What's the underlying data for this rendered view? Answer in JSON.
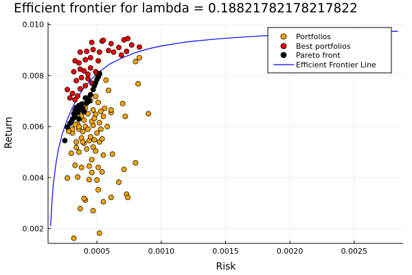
{
  "chart_data": {
    "type": "scatter",
    "title": "Efficient frontier for lambda = 0.18821782178217822",
    "xlabel": "Risk",
    "ylabel": "Return",
    "xlim": [
      0.00012,
      0.00288
    ],
    "ylim": [
      0.00142,
      0.0101
    ],
    "grid": true,
    "legend_position": "top-right",
    "x_ticks": [
      {
        "value": 0.0005,
        "label": "0.0005"
      },
      {
        "value": 0.001,
        "label": "0.0010"
      },
      {
        "value": 0.0015,
        "label": "0.0015"
      },
      {
        "value": 0.002,
        "label": "0.0020"
      },
      {
        "value": 0.0025,
        "label": "0.0025"
      }
    ],
    "y_ticks": [
      {
        "value": 0.002,
        "label": "0.002"
      },
      {
        "value": 0.004,
        "label": "0.004"
      },
      {
        "value": 0.006,
        "label": "0.006"
      },
      {
        "value": 0.008,
        "label": "0.008"
      },
      {
        "value": 0.01,
        "label": "0.010"
      }
    ],
    "series": [
      {
        "name": "Portfolios",
        "kind": "scatter",
        "color": "#f5a300",
        "points": [
          [
            0.00032,
            0.00162
          ],
          [
            0.00052,
            0.00182
          ],
          [
            0.00037,
            0.00278
          ],
          [
            0.00047,
            0.0027
          ],
          [
            0.00041,
            0.00312
          ],
          [
            0.00055,
            0.00305
          ],
          [
            0.00061,
            0.00322
          ],
          [
            0.00073,
            0.00335
          ],
          [
            0.00074,
            0.00322
          ],
          [
            0.0004,
            0.00318
          ],
          [
            0.00051,
            0.00352
          ],
          [
            0.00067,
            0.00382
          ],
          [
            0.00027,
            0.00398
          ],
          [
            0.00035,
            0.00402
          ],
          [
            0.00044,
            0.00392
          ],
          [
            0.0005,
            0.0039
          ],
          [
            0.00046,
            0.0042
          ],
          [
            0.00054,
            0.00422
          ],
          [
            0.00071,
            0.00432
          ],
          [
            0.0008,
            0.00458
          ],
          [
            0.00033,
            0.00448
          ],
          [
            0.00038,
            0.0044
          ],
          [
            0.00044,
            0.00445
          ],
          [
            0.00046,
            0.0047
          ],
          [
            0.00051,
            0.0044
          ],
          [
            0.00055,
            0.00488
          ],
          [
            0.00062,
            0.00492
          ],
          [
            0.0003,
            0.00495
          ],
          [
            0.00036,
            0.005
          ],
          [
            0.00042,
            0.00512
          ],
          [
            0.00047,
            0.0052
          ],
          [
            0.00049,
            0.00504
          ],
          [
            0.00034,
            0.00518
          ],
          [
            0.0004,
            0.00535
          ],
          [
            0.00044,
            0.00545
          ],
          [
            0.00052,
            0.0054
          ],
          [
            0.00038,
            0.00555
          ],
          [
            0.00045,
            0.0056
          ],
          [
            0.0005,
            0.00575
          ],
          [
            0.00031,
            0.00575
          ],
          [
            0.00036,
            0.0059
          ],
          [
            0.00041,
            0.006
          ],
          [
            0.00047,
            0.00605
          ],
          [
            0.00053,
            0.0059
          ],
          [
            0.00058,
            0.006
          ],
          [
            0.00035,
            0.0061
          ],
          [
            0.0004,
            0.00625
          ],
          [
            0.00046,
            0.0062
          ],
          [
            0.00052,
            0.00615
          ],
          [
            0.00033,
            0.00635
          ],
          [
            0.00038,
            0.0064
          ],
          [
            0.00043,
            0.0065
          ],
          [
            0.00049,
            0.00648
          ],
          [
            0.00055,
            0.0064
          ],
          [
            0.00061,
            0.00655
          ],
          [
            0.00036,
            0.00662
          ],
          [
            0.00041,
            0.00672
          ],
          [
            0.00047,
            0.00665
          ],
          [
            0.00053,
            0.0066
          ],
          [
            0.00072,
            0.0064
          ],
          [
            0.0004,
            0.0069
          ],
          [
            0.00045,
            0.00702
          ],
          [
            0.00051,
            0.00695
          ],
          [
            0.0007,
            0.0069
          ],
          [
            0.0009,
            0.0065
          ],
          [
            0.00061,
            0.00665
          ],
          [
            0.00044,
            0.0071
          ],
          [
            0.00049,
            0.00718
          ],
          [
            0.00059,
            0.00742
          ],
          [
            0.00082,
            0.00768
          ],
          [
            0.00052,
            0.00805
          ],
          [
            0.00057,
            0.00782
          ],
          [
            0.00036,
            0.006
          ],
          [
            0.00031,
            0.0059
          ],
          [
            0.00028,
            0.00582
          ],
          [
            0.00033,
            0.00608
          ],
          [
            0.00039,
            0.0058
          ],
          [
            0.00043,
            0.0059
          ],
          [
            0.00048,
            0.00632
          ],
          [
            0.00056,
            0.00672
          ],
          [
            0.0008,
            0.00855
          ],
          [
            0.00083,
            0.0087
          ],
          [
            0.00054,
            0.00552
          ],
          [
            0.00039,
            0.0054
          ],
          [
            0.00048,
            0.00548
          ],
          [
            0.00034,
            0.0054
          ]
        ]
      },
      {
        "name": "Best portfolios",
        "kind": "scatter",
        "color": "#e60000",
        "points": [
          [
            0.00027,
            0.00745
          ],
          [
            0.00031,
            0.0073
          ],
          [
            0.00035,
            0.0072
          ],
          [
            0.00029,
            0.00712
          ],
          [
            0.00033,
            0.00705
          ],
          [
            0.00037,
            0.00748
          ],
          [
            0.00041,
            0.0076
          ],
          [
            0.00034,
            0.0078
          ],
          [
            0.00038,
            0.00792
          ],
          [
            0.00043,
            0.00805
          ],
          [
            0.00032,
            0.00815
          ],
          [
            0.00037,
            0.00825
          ],
          [
            0.0004,
            0.00818
          ],
          [
            0.00045,
            0.0083
          ],
          [
            0.00049,
            0.00815
          ],
          [
            0.00036,
            0.0085
          ],
          [
            0.00041,
            0.00862
          ],
          [
            0.00045,
            0.0087
          ],
          [
            0.00051,
            0.00858
          ],
          [
            0.00033,
            0.00858
          ],
          [
            0.00037,
            0.00892
          ],
          [
            0.00042,
            0.00895
          ],
          [
            0.00047,
            0.00902
          ],
          [
            0.00052,
            0.00892
          ],
          [
            0.00059,
            0.00898
          ],
          [
            0.00063,
            0.00892
          ],
          [
            0.00069,
            0.0088
          ],
          [
            0.00073,
            0.00895
          ],
          [
            0.00046,
            0.0093
          ],
          [
            0.00054,
            0.00935
          ],
          [
            0.00061,
            0.00925
          ],
          [
            0.00067,
            0.0091
          ],
          [
            0.00071,
            0.0094
          ],
          [
            0.00077,
            0.0092
          ],
          [
            0.00083,
            0.00912
          ],
          [
            0.00055,
            0.00938
          ],
          [
            0.00074,
            0.00945
          ],
          [
            0.0005,
            0.00808
          ],
          [
            0.00043,
            0.00788
          ],
          [
            0.00046,
            0.0077
          ]
        ]
      },
      {
        "name": "Pareto front",
        "kind": "scatter",
        "color": "#000000",
        "points": [
          [
            0.00025,
            0.00545
          ],
          [
            0.00027,
            0.00598
          ],
          [
            0.00029,
            0.00612
          ],
          [
            0.00031,
            0.0063
          ],
          [
            0.00032,
            0.0065
          ],
          [
            0.00033,
            0.00665
          ],
          [
            0.00034,
            0.00675
          ],
          [
            0.00036,
            0.00682
          ],
          [
            0.00038,
            0.00688
          ],
          [
            0.00039,
            0.0067
          ],
          [
            0.0004,
            0.00658
          ],
          [
            0.00042,
            0.00692
          ],
          [
            0.00044,
            0.007
          ],
          [
            0.00041,
            0.00712
          ],
          [
            0.00045,
            0.00725
          ],
          [
            0.00047,
            0.00745
          ],
          [
            0.00049,
            0.00772
          ],
          [
            0.0005,
            0.00785
          ],
          [
            0.00051,
            0.00795
          ],
          [
            0.00052,
            0.00808
          ],
          [
            0.00035,
            0.00655
          ],
          [
            0.00037,
            0.00665
          ],
          [
            0.0003,
            0.00618
          ],
          [
            0.00033,
            0.0064
          ],
          [
            0.00048,
            0.0076
          ],
          [
            0.00043,
            0.00712
          ],
          [
            0.00036,
            0.0063
          ]
        ]
      },
      {
        "name": "Efficient Frontier Line",
        "kind": "line",
        "color": "#0000ff",
        "points": [
          [
            0.00014,
            0.0021
          ],
          [
            0.00015,
            0.003
          ],
          [
            0.00016,
            0.0037
          ],
          [
            0.00018,
            0.0045
          ],
          [
            0.0002,
            0.0051
          ],
          [
            0.00023,
            0.0057
          ],
          [
            0.00026,
            0.00615
          ],
          [
            0.0003,
            0.00665
          ],
          [
            0.00035,
            0.00715
          ],
          [
            0.0004,
            0.00752
          ],
          [
            0.00045,
            0.00782
          ],
          [
            0.0005,
            0.00808
          ],
          [
            0.0006,
            0.00845
          ],
          [
            0.0007,
            0.0087
          ],
          [
            0.0008,
            0.0089
          ],
          [
            0.0009,
            0.00905
          ],
          [
            0.001,
            0.00916
          ],
          [
            0.0012,
            0.00932
          ],
          [
            0.0014,
            0.00942
          ],
          [
            0.0016,
            0.0095
          ],
          [
            0.0018,
            0.00956
          ],
          [
            0.002,
            0.00961
          ],
          [
            0.0022,
            0.00965
          ],
          [
            0.0024,
            0.00968
          ],
          [
            0.0026,
            0.00971
          ],
          [
            0.00284,
            0.00974
          ]
        ]
      }
    ]
  }
}
